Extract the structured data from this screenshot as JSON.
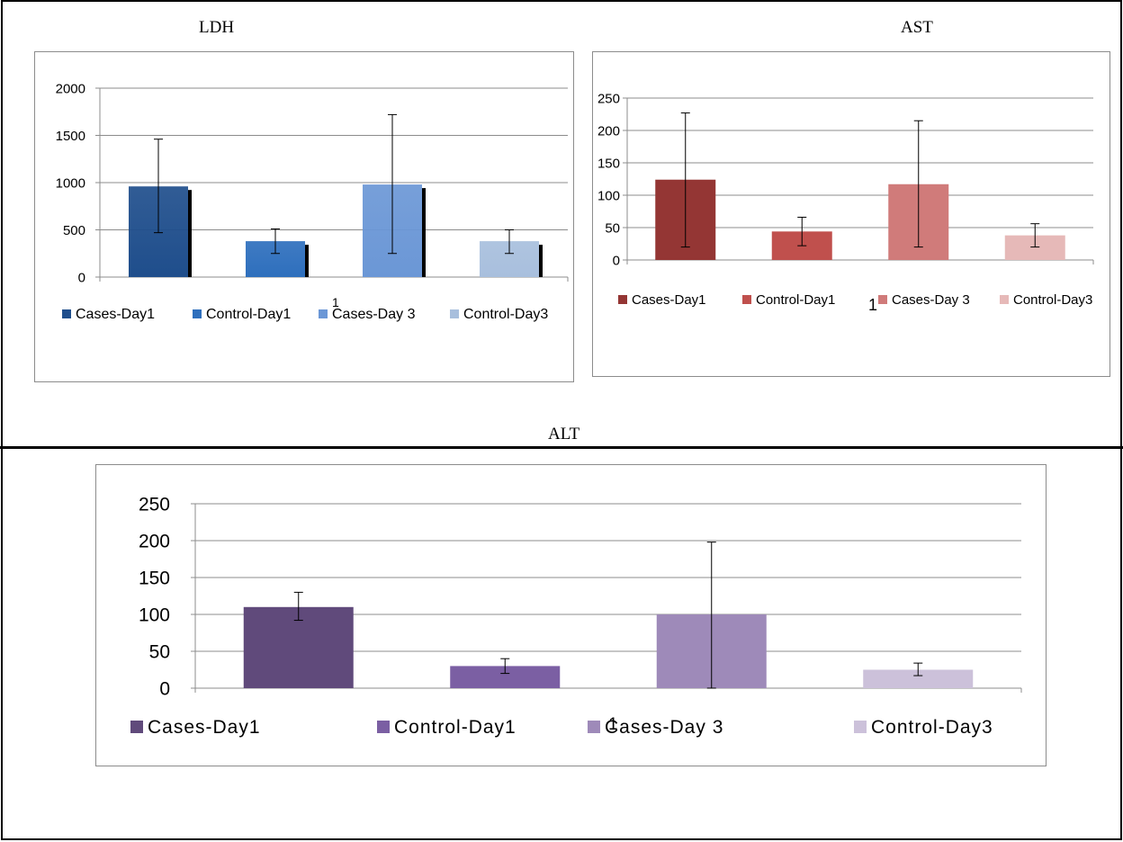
{
  "captions": {
    "ldh": "LDH",
    "ast": "AST",
    "alt": "ALT"
  },
  "chart_data": [
    {
      "id": "ldh",
      "type": "bar",
      "title": "LDH",
      "categories": [
        "Cases-Day1",
        "Control-Day1",
        "Cases-Day 3",
        "Control-Day3"
      ],
      "values": [
        960,
        380,
        980,
        380
      ],
      "error_low": [
        470,
        250,
        250,
        250
      ],
      "error_high": [
        1460,
        510,
        1720,
        500
      ],
      "ylim": [
        0,
        2000
      ],
      "yticks": [
        0,
        500,
        1000,
        1500,
        2000
      ],
      "category_axis_label": "1",
      "colors": [
        "#1f4e8c",
        "#2e6fbd",
        "#6b97d6",
        "#a8bfdd"
      ],
      "grid": true,
      "legend": "bottom"
    },
    {
      "id": "ast",
      "type": "bar",
      "title": "AST",
      "categories": [
        "Cases-Day1",
        "Control-Day1",
        "Cases-Day 3",
        "Control-Day3"
      ],
      "values": [
        124,
        44,
        117,
        38
      ],
      "error_low": [
        20,
        22,
        20,
        20
      ],
      "error_high": [
        227,
        66,
        215,
        56
      ],
      "ylim": [
        0,
        250
      ],
      "yticks": [
        0,
        50,
        100,
        150,
        200,
        250
      ],
      "category_axis_label": "1",
      "colors": [
        "#943634",
        "#c0504d",
        "#d07b7a",
        "#e6b9b8"
      ],
      "grid": true,
      "legend": "bottom"
    },
    {
      "id": "alt",
      "type": "bar",
      "title": "ALT",
      "categories": [
        "Cases-Day1",
        "Control-Day1",
        "Cases-Day 3",
        "Control-Day3"
      ],
      "values": [
        110,
        30,
        100,
        25
      ],
      "error_low": [
        92,
        20,
        0,
        17
      ],
      "error_high": [
        130,
        40,
        198,
        34
      ],
      "ylim": [
        0,
        250
      ],
      "yticks": [
        0,
        50,
        100,
        150,
        200,
        250
      ],
      "category_axis_label": "1",
      "colors": [
        "#604a7b",
        "#7b5fa3",
        "#9e8ab9",
        "#ccc1da"
      ],
      "grid": true,
      "legend": "bottom"
    }
  ]
}
